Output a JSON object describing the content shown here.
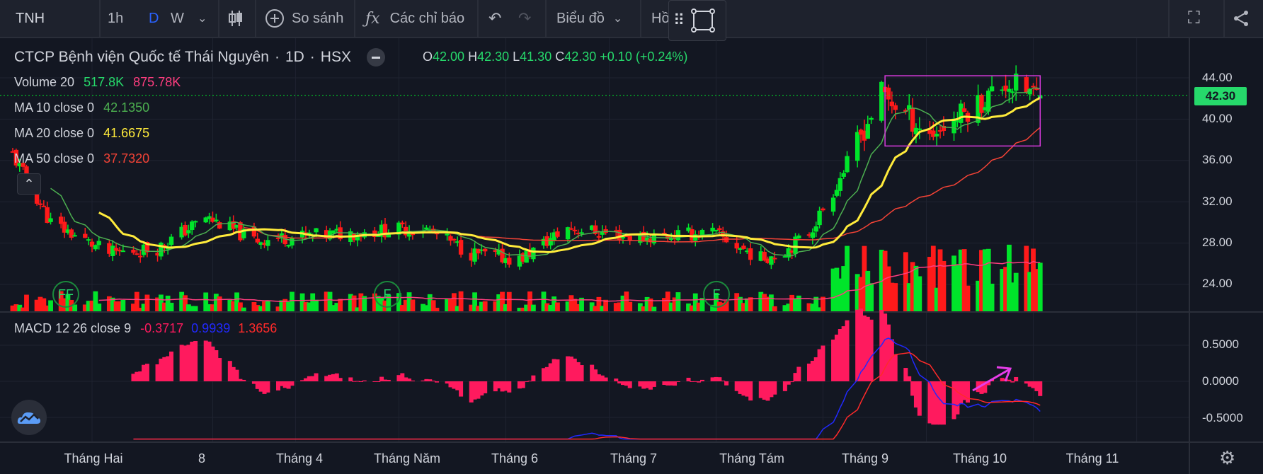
{
  "toolbar": {
    "symbol": "TNH",
    "intervals": [
      "1h",
      "D",
      "W"
    ],
    "active_interval": "D",
    "compare_label": "So sánh",
    "indicators_label": "Các chỉ báo",
    "chart_type_label": "Biểu đồ",
    "truncated_label": "Hồ"
  },
  "legend": {
    "title": "CTCP Bệnh viện Quốc tế Thái Nguyên",
    "sep1": "·",
    "interval": "1D",
    "sep2": "·",
    "exchange": "HSX",
    "o_key": "O",
    "o_val": "42.00",
    "h_key": "H",
    "h_val": "42.30",
    "l_key": "L",
    "l_val": "41.30",
    "c_key": "C",
    "c_val": "42.30",
    "change": "+0.10 (+0.24%)",
    "volume_label": "Volume 20",
    "volume_val": "517.8K",
    "volume_ma": "875.78K",
    "ma10_label": "MA 10 close 0",
    "ma10_val": "42.1350",
    "ma20_label": "MA 20 close 0",
    "ma20_val": "41.6675",
    "ma50_label": "MA 50 close 0",
    "ma50_val": "37.7320",
    "macd_label": "MACD 12 26 close 9",
    "macd_hist": "-0.3717",
    "macd_line": "0.9939",
    "macd_signal": "1.3656"
  },
  "price_axis": [
    "44.00",
    "40.00",
    "36.00",
    "32.00",
    "28.00",
    "24.00"
  ],
  "last_price_tag": "42.30",
  "macd_axis": [
    "0.5000",
    "0.0000",
    "-0.5000"
  ],
  "time_axis": [
    "Tháng Hai",
    "8",
    "Tháng 4",
    "Tháng Năm",
    "Tháng 6",
    "Tháng 7",
    "Tháng Tám",
    "Tháng 9",
    "Tháng 10",
    "Tháng 11"
  ],
  "event_markers": [
    "FF",
    "F",
    "F"
  ],
  "colors": {
    "up": "#00e52a",
    "down": "#ff1a1a",
    "ma10": "#4caf50",
    "ma20": "#ffeb3b",
    "ma50": "#f44336",
    "macd_hist": "#ff1a5e",
    "macd_line": "#2129ff",
    "macd_signal": "#ff2a2a",
    "box": "#d63adb",
    "arrow": "#e63de8",
    "bg": "#131722"
  },
  "chart_data": {
    "type": "candlestick",
    "y_range": [
      22,
      45.5
    ],
    "macd_range": [
      -0.8,
      0.8
    ],
    "anchors": [
      [
        "2023-01-09",
        36.5
      ],
      [
        "2023-01-20",
        30.0
      ],
      [
        "2023-02-06",
        27.0
      ],
      [
        "2023-02-20",
        27.5
      ],
      [
        "2023-03-06",
        30.5
      ],
      [
        "2023-03-20",
        28.3
      ],
      [
        "2023-04-10",
        28.8
      ],
      [
        "2023-05-08",
        29.5
      ],
      [
        "2023-05-22",
        27.0
      ],
      [
        "2023-06-05",
        26.4
      ],
      [
        "2023-06-19",
        29.5
      ],
      [
        "2023-07-10",
        28.5
      ],
      [
        "2023-07-31",
        29.0
      ],
      [
        "2023-08-14",
        26.5
      ],
      [
        "2023-08-21",
        27.3
      ],
      [
        "2023-08-28",
        29.0
      ],
      [
        "2023-09-04",
        33.0
      ],
      [
        "2023-09-18",
        42.5
      ],
      [
        "2023-10-02",
        38.5
      ],
      [
        "2023-10-16",
        41.5
      ],
      [
        "2023-10-24",
        43.5
      ],
      [
        "2023-11-03",
        42.3
      ]
    ],
    "last": {
      "open": 42.0,
      "high": 42.3,
      "low": 41.3,
      "close": 42.3
    },
    "box": {
      "from": "2023-09-19",
      "to": "2023-11-03",
      "high": 44.2,
      "low": 37.4
    }
  }
}
